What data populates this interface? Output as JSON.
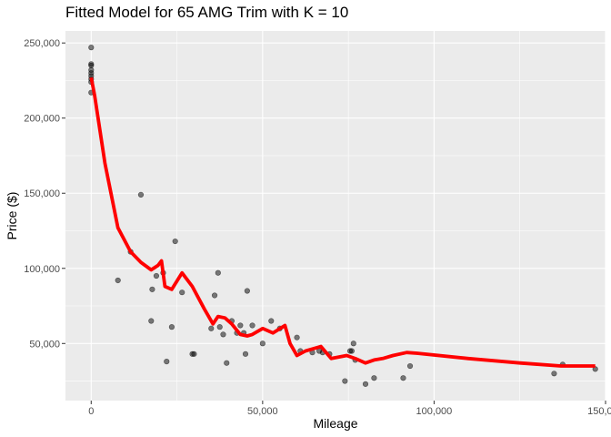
{
  "chart_data": {
    "type": "scatter",
    "title": "Fitted Model for 65 AMG Trim with K = 10",
    "xlabel": "Mileage",
    "ylabel": "Price ($)",
    "xlim": [
      -7500,
      150000
    ],
    "ylim": [
      12000,
      258000
    ],
    "x_ticks": [
      0,
      50000,
      100000,
      150000
    ],
    "x_tick_labels": [
      "0",
      "50,000",
      "100,000",
      "150,000"
    ],
    "y_ticks": [
      50000,
      100000,
      150000,
      200000,
      250000
    ],
    "y_tick_labels": [
      "50,000",
      "100,000",
      "150,000",
      "200,000",
      "250,000"
    ],
    "grid": true,
    "colors": {
      "panel": "#ebebeb",
      "grid": "#ffffff",
      "points": "#000000",
      "fit_line": "#ff0000"
    },
    "series": [
      {
        "kind": "points",
        "points": [
          [
            0,
            247000
          ],
          [
            0,
            236000
          ],
          [
            0,
            235000
          ],
          [
            0,
            232000
          ],
          [
            0,
            230000
          ],
          [
            0,
            228000
          ],
          [
            0,
            226000
          ],
          [
            0,
            224000
          ],
          [
            0,
            217000
          ],
          [
            7800,
            92000
          ],
          [
            11500,
            111000
          ],
          [
            14500,
            149000
          ],
          [
            17500,
            65000
          ],
          [
            17800,
            86000
          ],
          [
            19000,
            95000
          ],
          [
            21000,
            97000
          ],
          [
            22000,
            38000
          ],
          [
            23500,
            61000
          ],
          [
            24500,
            118000
          ],
          [
            26500,
            84000
          ],
          [
            29500,
            43000
          ],
          [
            30000,
            43000
          ],
          [
            35000,
            60000
          ],
          [
            36000,
            82000
          ],
          [
            37000,
            97000
          ],
          [
            37500,
            61000
          ],
          [
            38500,
            56000
          ],
          [
            39500,
            37000
          ],
          [
            41000,
            65000
          ],
          [
            42500,
            57000
          ],
          [
            43500,
            62000
          ],
          [
            44500,
            57000
          ],
          [
            45000,
            43000
          ],
          [
            45500,
            85000
          ],
          [
            47000,
            62000
          ],
          [
            50000,
            50000
          ],
          [
            52500,
            65000
          ],
          [
            55000,
            60000
          ],
          [
            60000,
            54000
          ],
          [
            61000,
            45000
          ],
          [
            64500,
            44000
          ],
          [
            66500,
            45000
          ],
          [
            67500,
            44000
          ],
          [
            69500,
            43000
          ],
          [
            74000,
            25000
          ],
          [
            75500,
            45000
          ],
          [
            76000,
            45000
          ],
          [
            76500,
            50000
          ],
          [
            77000,
            39000
          ],
          [
            80000,
            23000
          ],
          [
            82500,
            27000
          ],
          [
            91000,
            27000
          ],
          [
            93000,
            35000
          ],
          [
            135000,
            30000
          ],
          [
            137500,
            36000
          ],
          [
            147000,
            33000
          ]
        ]
      },
      {
        "kind": "fitted_line",
        "points": [
          [
            0,
            227000
          ],
          [
            1000,
            215000
          ],
          [
            4000,
            170000
          ],
          [
            7800,
            127000
          ],
          [
            11500,
            111000
          ],
          [
            14500,
            104000
          ],
          [
            17500,
            99000
          ],
          [
            19500,
            102000
          ],
          [
            20500,
            105000
          ],
          [
            21500,
            88000
          ],
          [
            23500,
            86000
          ],
          [
            26500,
            97000
          ],
          [
            29500,
            88000
          ],
          [
            33000,
            73000
          ],
          [
            35500,
            63000
          ],
          [
            37000,
            68000
          ],
          [
            39000,
            67000
          ],
          [
            41000,
            63000
          ],
          [
            43500,
            56000
          ],
          [
            45500,
            55000
          ],
          [
            47000,
            56000
          ],
          [
            50000,
            60000
          ],
          [
            53000,
            57000
          ],
          [
            56500,
            62000
          ],
          [
            58000,
            50000
          ],
          [
            60000,
            42000
          ],
          [
            62500,
            45000
          ],
          [
            67000,
            48000
          ],
          [
            70000,
            40000
          ],
          [
            74500,
            42000
          ],
          [
            77000,
            40000
          ],
          [
            80000,
            37000
          ],
          [
            82500,
            39000
          ],
          [
            85000,
            40000
          ],
          [
            88000,
            42000
          ],
          [
            92000,
            44000
          ],
          [
            95000,
            43500
          ],
          [
            110000,
            40000
          ],
          [
            125000,
            37000
          ],
          [
            137000,
            35000
          ],
          [
            147000,
            35000
          ]
        ]
      }
    ]
  }
}
